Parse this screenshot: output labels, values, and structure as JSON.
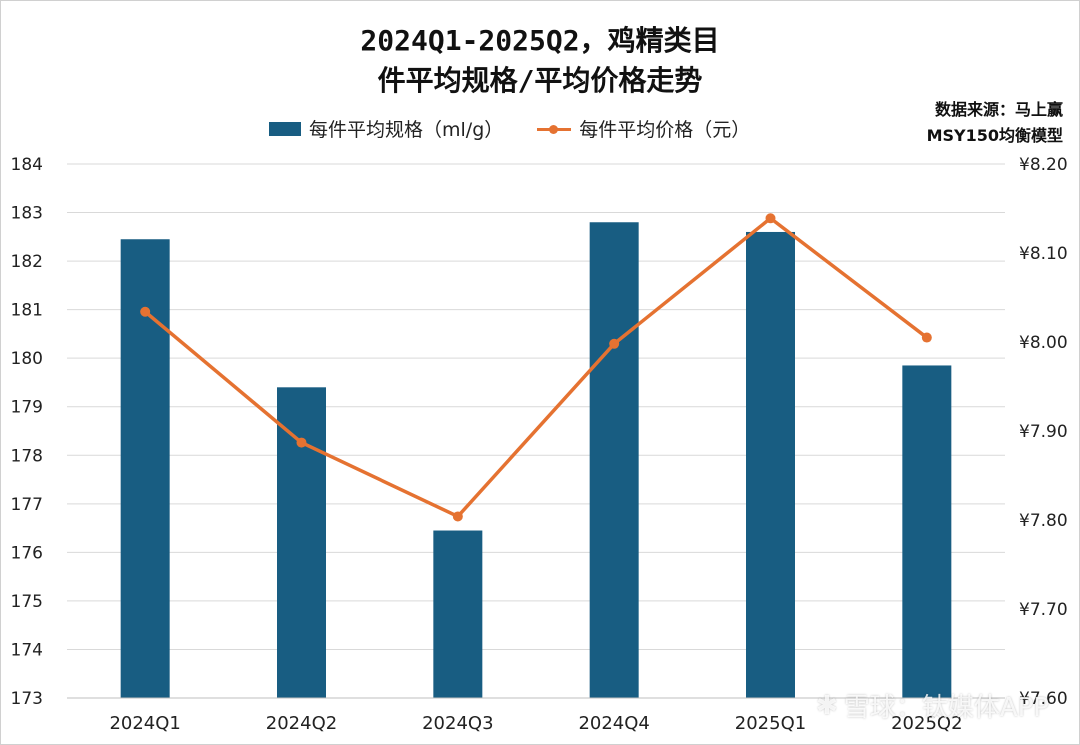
{
  "chart_data": {
    "type": "bar",
    "title_lines": [
      "2024Q1-2025Q2，鸡精类目",
      "件平均规格/平均价格走势"
    ],
    "source_note_lines": [
      "数据来源：马上赢",
      "MSY150均衡模型"
    ],
    "categories": [
      "2024Q1",
      "2024Q2",
      "2024Q3",
      "2024Q4",
      "2025Q1",
      "2025Q2"
    ],
    "series": [
      {
        "name": "每件平均规格（ml/g）",
        "type": "bar",
        "axis": "left",
        "color": "#185d82",
        "values": [
          182.45,
          179.4,
          176.45,
          182.8,
          182.6,
          179.85
        ]
      },
      {
        "name": "每件平均价格（元）",
        "type": "line",
        "axis": "right",
        "color": "#e57231",
        "values": [
          8.034,
          7.887,
          7.804,
          7.998,
          8.139,
          8.005
        ]
      }
    ],
    "y_left": {
      "min": 173,
      "max": 184,
      "step": 1,
      "tick_labels": [
        "173",
        "174",
        "175",
        "176",
        "177",
        "178",
        "179",
        "180",
        "181",
        "182",
        "183",
        "184"
      ]
    },
    "y_right": {
      "min": 7.6,
      "max": 8.2,
      "step": 0.1,
      "tick_labels": [
        "¥7.60",
        "¥7.70",
        "¥7.80",
        "¥7.90",
        "¥8.00",
        "¥8.10",
        "¥8.20"
      ]
    },
    "grid": true,
    "legend_position": "top"
  },
  "watermark": {
    "icon": "snowball-icon",
    "text": "雪球：钛媒体APP"
  }
}
